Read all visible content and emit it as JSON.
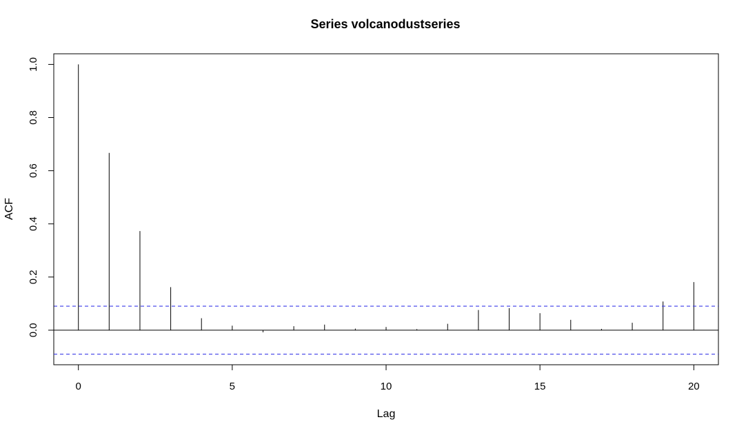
{
  "chart_data": {
    "type": "bar",
    "title": "Series  volcanodustseries",
    "xlabel": "Lag",
    "ylabel": "ACF",
    "x": [
      0,
      1,
      2,
      3,
      4,
      5,
      6,
      7,
      8,
      9,
      10,
      11,
      12,
      13,
      14,
      15,
      16,
      17,
      18,
      19,
      20
    ],
    "values": [
      1.0,
      0.667,
      0.373,
      0.162,
      0.045,
      0.017,
      -0.008,
      0.015,
      0.021,
      0.006,
      0.012,
      0.004,
      0.024,
      0.076,
      0.083,
      0.064,
      0.039,
      0.005,
      0.028,
      0.108,
      0.181
    ],
    "confidence_band": [
      -0.0903,
      0.0903
    ],
    "xlim": [
      -0.8,
      20.8
    ],
    "ylim": [
      -0.13,
      1.04
    ],
    "x_ticks": [
      0,
      5,
      10,
      15,
      20
    ],
    "y_ticks": [
      0.0,
      0.2,
      0.4,
      0.6,
      0.8,
      1.0
    ],
    "x_tick_labels": [
      "0",
      "5",
      "10",
      "15",
      "20"
    ],
    "y_tick_labels": [
      "0.0",
      "0.2",
      "0.4",
      "0.6",
      "0.8",
      "1.0"
    ],
    "grid": false,
    "colors": {
      "bars": "#000000",
      "confidence_band": "#3a3ae8",
      "zero_line": "#000000"
    }
  }
}
